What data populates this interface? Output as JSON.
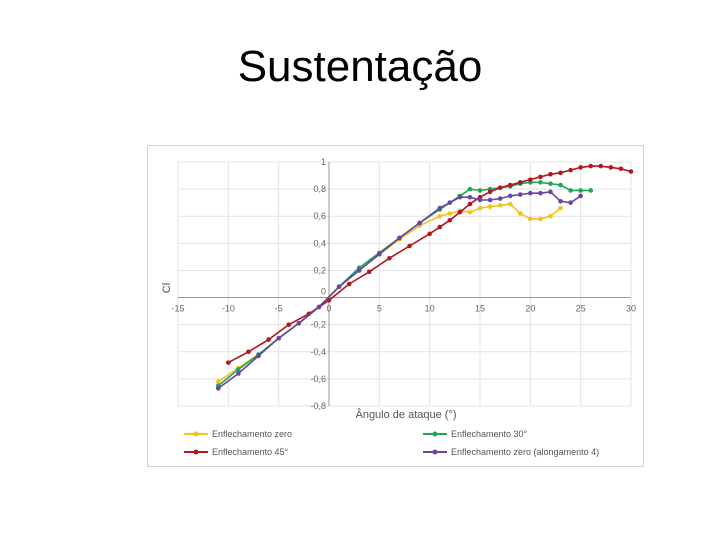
{
  "slide": {
    "title": "Sustentação"
  },
  "chart_data": {
    "type": "line",
    "title": "",
    "xlabel": "Ângulo de ataque (°)",
    "ylabel": "Cl",
    "xlim": [
      -15,
      30
    ],
    "ylim": [
      -0.8,
      1
    ],
    "xticks": [
      -15,
      -10,
      -5,
      0,
      5,
      10,
      15,
      20,
      25,
      30
    ],
    "xtick_labels": [
      "-15",
      "-10",
      "-5",
      "0",
      "5",
      "10",
      "15",
      "20",
      "25",
      "30"
    ],
    "yticks": [
      -0.8,
      -0.6,
      -0.4,
      -0.2,
      0,
      0.2,
      0.4,
      0.6,
      0.8,
      1
    ],
    "ytick_labels": [
      "-0,8",
      "-0,6",
      "-0,4",
      "-0,2",
      "0",
      "0,2",
      "0,4",
      "0,6",
      "0,8",
      "1"
    ],
    "grid": true,
    "legend_position": "bottom",
    "series": [
      {
        "name": "Enflechamento zero",
        "color": "#f2c318",
        "x": [
          -11,
          -9,
          -7,
          -5,
          -3,
          -1,
          1,
          3,
          5,
          7,
          9,
          11,
          12,
          13,
          14,
          15,
          16,
          17,
          18,
          19,
          20,
          21,
          22,
          23
        ],
        "y": [
          -0.62,
          -0.52,
          -0.42,
          -0.3,
          -0.19,
          -0.07,
          0.08,
          0.2,
          0.32,
          0.43,
          0.53,
          0.6,
          0.62,
          0.64,
          0.63,
          0.66,
          0.67,
          0.68,
          0.69,
          0.62,
          0.58,
          0.58,
          0.6,
          0.66
        ]
      },
      {
        "name": "Enflechamento 30°",
        "color": "#22a454",
        "x": [
          -11,
          -9,
          -7,
          -5,
          -3,
          -1,
          1,
          3,
          5,
          7,
          9,
          11,
          12,
          13,
          14,
          15,
          16,
          17,
          18,
          19,
          20,
          21,
          22,
          23,
          24,
          25,
          26
        ],
        "y": [
          -0.65,
          -0.53,
          -0.42,
          -0.3,
          -0.19,
          -0.07,
          0.08,
          0.22,
          0.33,
          0.44,
          0.55,
          0.65,
          0.7,
          0.75,
          0.8,
          0.79,
          0.8,
          0.81,
          0.82,
          0.84,
          0.85,
          0.85,
          0.84,
          0.83,
          0.79,
          0.79,
          0.79
        ]
      },
      {
        "name": "Enflechamento 45°",
        "color": "#b3161c",
        "x": [
          -10,
          -8,
          -6,
          -4,
          -2,
          0,
          2,
          4,
          6,
          8,
          10,
          11,
          12,
          13,
          14,
          15,
          16,
          17,
          18,
          19,
          20,
          21,
          22,
          23,
          24,
          25,
          26,
          27,
          28,
          29,
          30
        ],
        "y": [
          -0.48,
          -0.4,
          -0.31,
          -0.2,
          -0.12,
          -0.02,
          0.1,
          0.19,
          0.29,
          0.38,
          0.47,
          0.52,
          0.57,
          0.63,
          0.69,
          0.74,
          0.78,
          0.81,
          0.83,
          0.85,
          0.87,
          0.89,
          0.91,
          0.92,
          0.94,
          0.96,
          0.97,
          0.97,
          0.96,
          0.95,
          0.93
        ]
      },
      {
        "name": "Enflechamento zero (alongamento 4)",
        "color": "#6b43a0",
        "x": [
          -11,
          -9,
          -7,
          -5,
          -3,
          -1,
          1,
          3,
          5,
          7,
          9,
          11,
          12,
          13,
          14,
          15,
          16,
          17,
          18,
          19,
          20,
          21,
          22,
          23,
          24,
          25
        ],
        "y": [
          -0.67,
          -0.56,
          -0.43,
          -0.3,
          -0.19,
          -0.07,
          0.08,
          0.2,
          0.32,
          0.44,
          0.55,
          0.66,
          0.7,
          0.74,
          0.74,
          0.72,
          0.72,
          0.73,
          0.75,
          0.76,
          0.77,
          0.77,
          0.78,
          0.71,
          0.7,
          0.75
        ]
      }
    ]
  }
}
